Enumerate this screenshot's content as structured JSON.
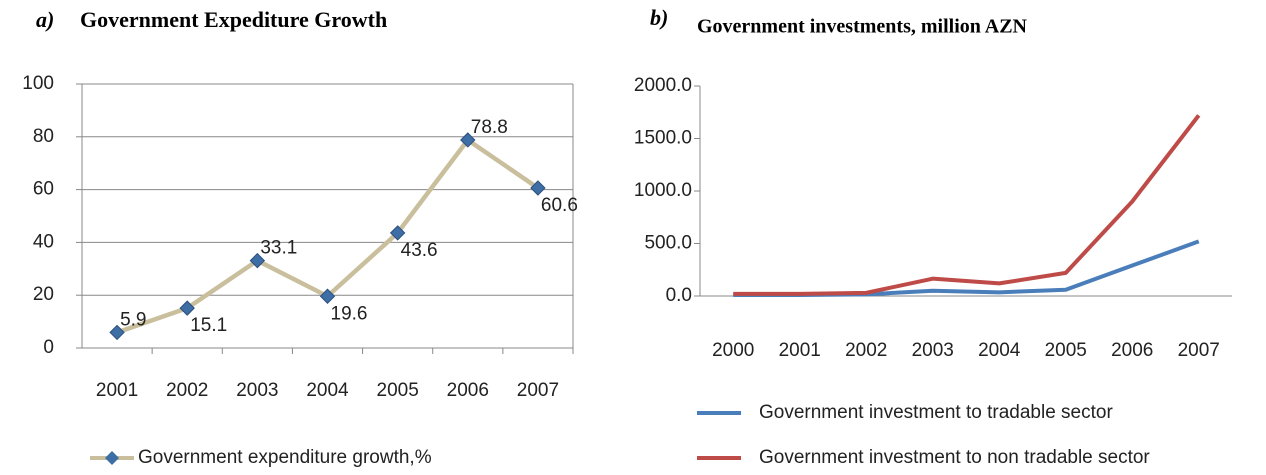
{
  "chart_data": [
    {
      "type": "line",
      "panel_label": "a)",
      "title": "Government Expediture Growth",
      "categories": [
        "2001",
        "2002",
        "2003",
        "2004",
        "2005",
        "2006",
        "2007"
      ],
      "series": [
        {
          "name": "Government expenditure growth,%",
          "color": "#c9bf9c",
          "marker_color": "#3e6ea6",
          "values": [
            5.9,
            15.1,
            33.1,
            19.6,
            43.6,
            78.8,
            60.6
          ]
        }
      ],
      "ylim": [
        0,
        100
      ],
      "yticks": [
        0,
        20,
        40,
        60,
        80,
        100
      ],
      "grid": true,
      "data_labels": true
    },
    {
      "type": "line",
      "panel_label": "b)",
      "title": "Government investments, million AZN",
      "categories": [
        "2000",
        "2001",
        "2002",
        "2003",
        "2004",
        "2005",
        "2006",
        "2007"
      ],
      "series": [
        {
          "name": "Government  investment to tradable sector",
          "color": "#4a7ebb",
          "values": [
            10,
            10,
            15,
            50,
            35,
            60,
            290,
            520
          ]
        },
        {
          "name": "Government  investment to non tradable sector",
          "color": "#be4b48",
          "values": [
            20,
            20,
            30,
            165,
            120,
            220,
            900,
            1720
          ]
        }
      ],
      "ylim": [
        0,
        2000
      ],
      "yticks": [
        {
          "value": 0,
          "label": "0.0"
        },
        {
          "value": 500,
          "label": "500.0"
        },
        {
          "value": 1000,
          "label": "1000.0"
        },
        {
          "value": 1500,
          "label": "1500.0"
        },
        {
          "value": 2000,
          "label": "2000.0"
        }
      ],
      "grid": false,
      "data_labels": false
    }
  ]
}
